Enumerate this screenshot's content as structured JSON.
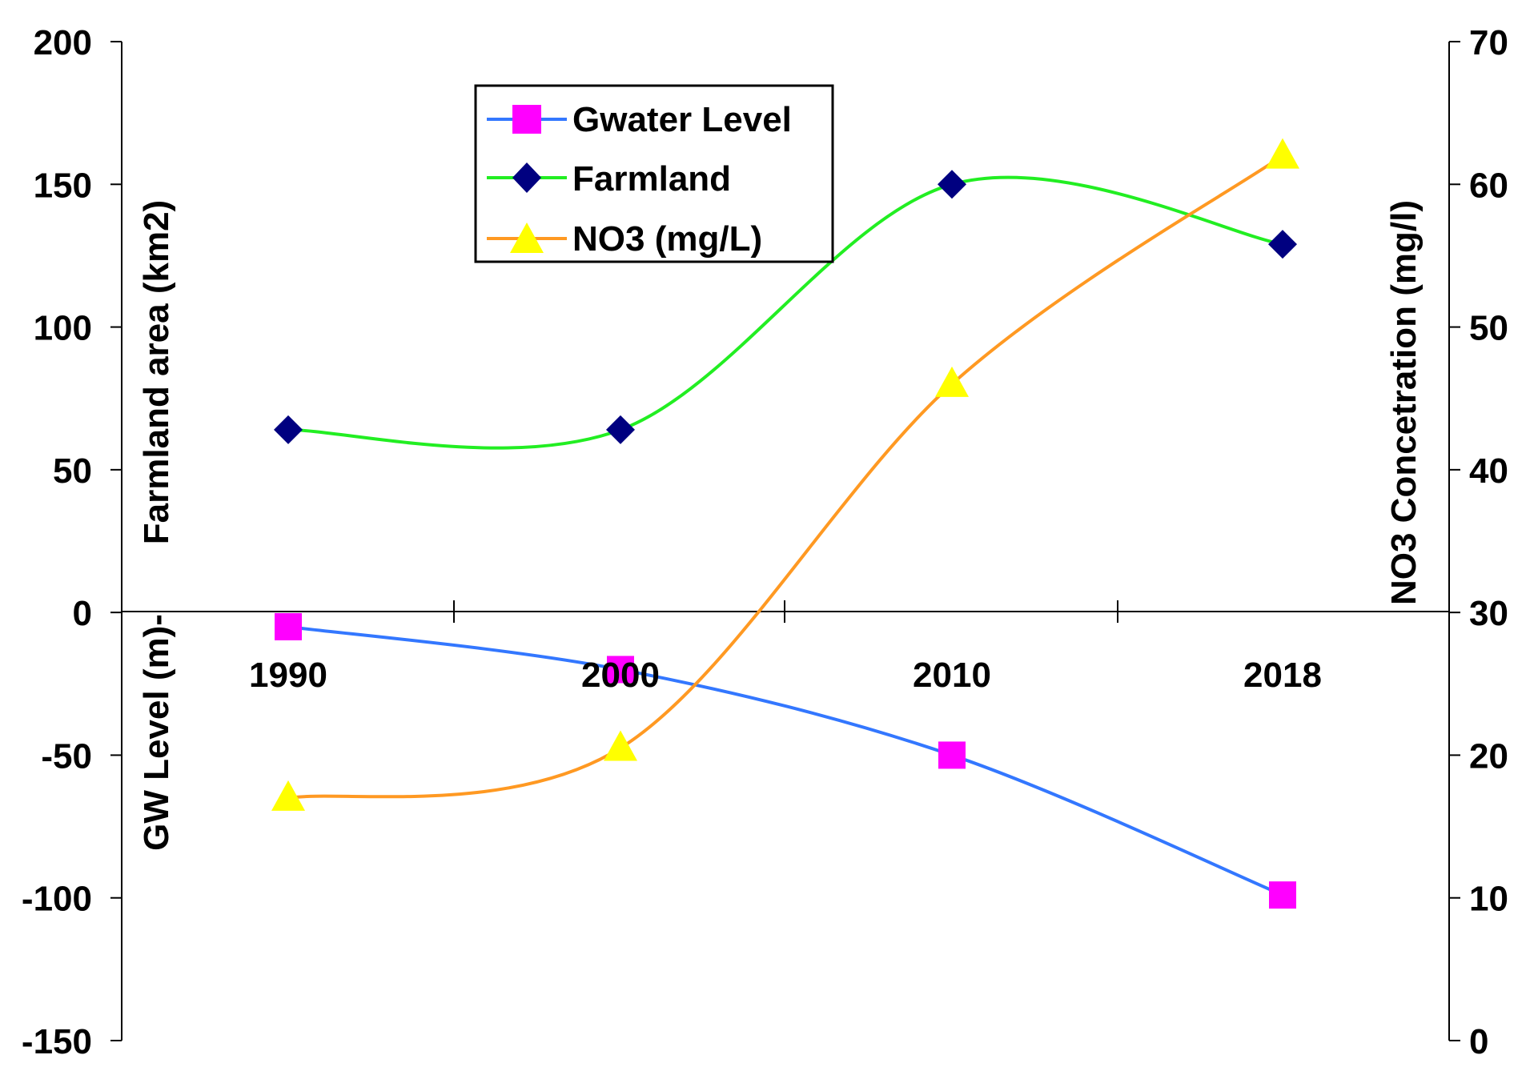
{
  "chart_data": {
    "type": "line",
    "title": "",
    "categories": [
      "1990",
      "2000",
      "2010",
      "2018"
    ],
    "left_axis": {
      "ylabel_upper": "Farmland area (km2)",
      "ylabel_lower": "GW Level (m)-",
      "ylim": [
        -150,
        200
      ],
      "ticks": [
        "200",
        "150",
        "100",
        "50",
        "0",
        "-50",
        "-100",
        "-150"
      ]
    },
    "right_axis": {
      "ylabel": "NO3 Concetration (mg/l)",
      "ylim": [
        0,
        70
      ],
      "ticks": [
        "70",
        "60",
        "50",
        "40",
        "30",
        "20",
        "10",
        "0"
      ]
    },
    "legend_position": "top-center",
    "series": [
      {
        "name": "Gwater Level",
        "axis": "left",
        "values": [
          -5,
          -20,
          -50,
          -99
        ],
        "color": "#3377ff",
        "marker": "square",
        "marker_color": "#ff00ff"
      },
      {
        "name": "Farmland",
        "axis": "left",
        "values": [
          64,
          64,
          150,
          129
        ],
        "color": "#22ee22",
        "marker": "diamond",
        "marker_color": "#000080"
      },
      {
        "name": "NO3 (mg/L)",
        "axis": "right",
        "values": [
          17,
          20.5,
          46,
          62
        ],
        "color": "#ff9922",
        "marker": "triangle",
        "marker_color": "#ffff00"
      }
    ],
    "grid": false
  }
}
